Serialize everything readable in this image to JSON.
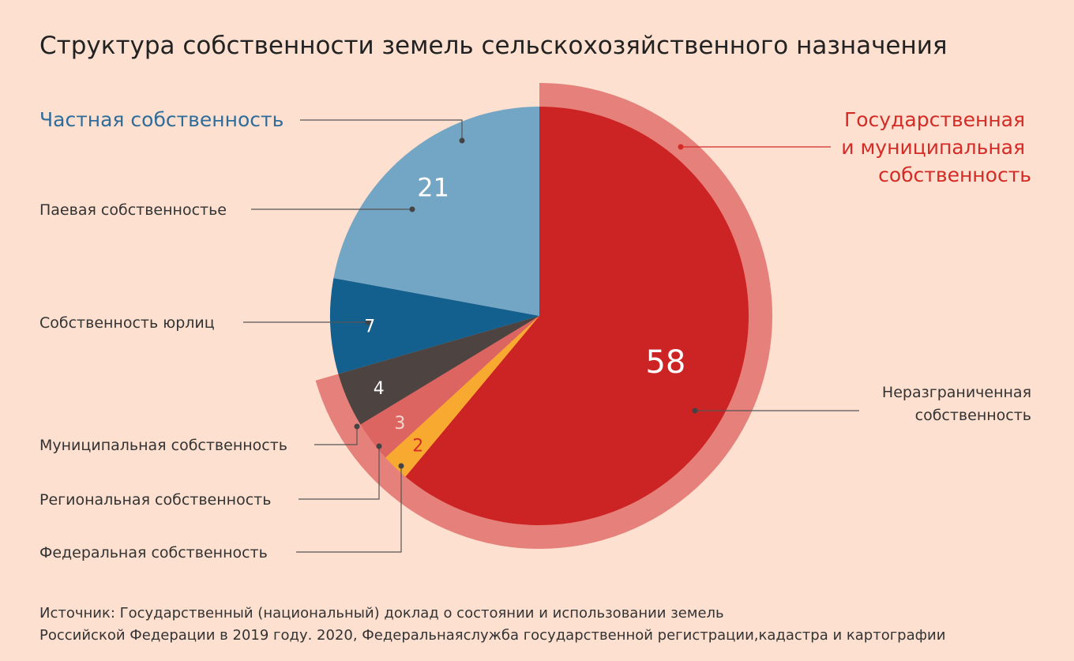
{
  "title": "Структура собственности земель сельскохозяйственного назначения",
  "source_line1": "Источник: Государственный (национальный) доклад о состоянии и использовании земель",
  "source_line2": "Российской Федерации в 2019 году. 2020, Федеральнаяслужба государственной регистрации,кадастра и картографии",
  "colors": {
    "background": "#fde0d0",
    "private_ring": "#bcbcbc",
    "state_ring": "#e5807a"
  },
  "chart_data": {
    "type": "pie",
    "title": "Структура собственности земель сельскохозяйственного назначения",
    "groups": [
      {
        "name": "Частная собственность",
        "members": [
          "Паевая собственностье",
          "Собственность  юрлиц"
        ]
      },
      {
        "name_lines": [
          "Государственная",
          "и муниципальная",
          "собственность"
        ],
        "members": [
          "Муниципальная собственность",
          "Региональная собственность",
          "Федеральная собственность",
          "Неразграниченная собственность"
        ]
      }
    ],
    "slices": [
      {
        "label": "Неразграниченная собственность",
        "label_lines": [
          "Неразграниченная",
          "собственность"
        ],
        "value": 58,
        "display": "58",
        "color": "#cc2424",
        "text_color": "#ffffff"
      },
      {
        "label": "Федеральная собственность",
        "value": 2,
        "display": "2",
        "color": "#f8aa30",
        "text_color": "#d42b26"
      },
      {
        "label": "Региональная собственность",
        "value": 3,
        "display": "3",
        "color": "#dc6562",
        "text_color": "#f4d6cc"
      },
      {
        "label": "Муниципальная собственность",
        "value": 4,
        "display": "4",
        "color": "#4d4340",
        "text_color": "#ffffff"
      },
      {
        "label": "Собственность  юрлиц",
        "value": 7,
        "display": "7",
        "color": "#135f8d",
        "text_color": "#ffffff"
      },
      {
        "label": "Паевая собственностье",
        "value": 21,
        "display": "21",
        "color": "#73a5c4",
        "text_color": "#ffffff"
      }
    ]
  }
}
